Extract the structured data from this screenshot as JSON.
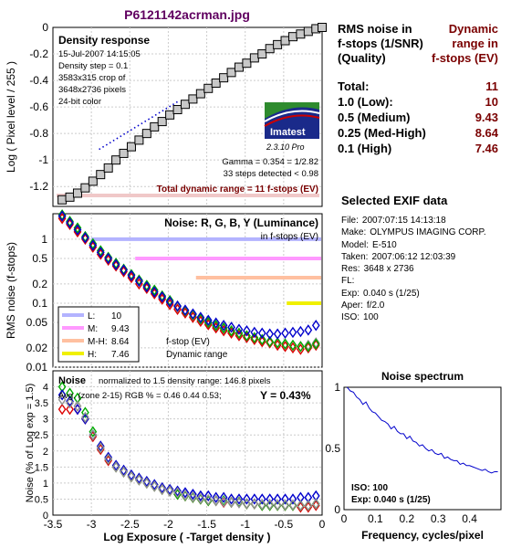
{
  "title": "P6121142acrman.jpg",
  "density_panel": {
    "heading": "Density response",
    "info": [
      "15-Jul-2007 14:15:05",
      "Density step = 0.1",
      "3583x315 crop of",
      "3648x2736 pixels",
      "24-bit color"
    ],
    "logo_text": "Imatest",
    "version_text": "2.3.10  Pro",
    "gamma_text": "Gamma = 0.354 = 1/2.82",
    "steps_text": "33 steps detected < 0.98",
    "total_range_text": "Total dynamic range = 11 f-stops (EV)",
    "ylabel": "Log ( Pixel level / 255 )"
  },
  "noise_fstop_panel": {
    "heading": "Noise: R, G, B, Y (Luminance)",
    "subheading": "in f-stops (EV)",
    "ylabel": "RMS noise (f-stops)",
    "legend": [
      {
        "key": "L:",
        "value": "10",
        "color": "#b3b3ff"
      },
      {
        "key": "M:",
        "value": "9.43",
        "color": "#ff99ff"
      },
      {
        "key": "M-H:",
        "value": "8.64",
        "color": "#ffc0a0"
      },
      {
        "key": "H:",
        "value": "7.46",
        "color": "#f0f000"
      }
    ],
    "annot1": "f-stop (EV)",
    "annot2": "Dynamic range"
  },
  "noise_pct_panel": {
    "heading": "Noise",
    "norm_text": "normalized to 1.5 density range: 146.8 pixels",
    "avg_text": "Avg. (zone 2-15) RGB % = 0.46  0.44  0.53;",
    "y_text": "Y = 0.43%",
    "ylabel": "Noise (% of Log exp = 1.5)",
    "xlabel": "Log Exposure ( -Target density )"
  },
  "rms_table": {
    "head_left": "RMS noise in f-stops (1/SNR) (Quality)",
    "head_left_lines": [
      "RMS noise in",
      "f-stops (1/SNR)",
      "(Quality)"
    ],
    "head_right_lines": [
      "Dynamic",
      "range in",
      "f-stops (EV)"
    ],
    "rows": [
      {
        "label": "Total:",
        "value": "11"
      },
      {
        "label": "1.0   (Low):",
        "value": "10"
      },
      {
        "label": "0.5   (Medium)",
        "value": "9.43"
      },
      {
        "label": "0.25 (Med-High)",
        "value": "8.64"
      },
      {
        "label": "0.1   (High)",
        "value": "7.46"
      }
    ]
  },
  "exif": {
    "heading": "Selected EXIF data",
    "fields": [
      {
        "k": "File:",
        "v": "2007:07:15 14:13:18"
      },
      {
        "k": "Make:",
        "v": "OLYMPUS IMAGING CORP."
      },
      {
        "k": "Model:",
        "v": "E-510"
      },
      {
        "k": "Taken:",
        "v": "2007:06:12 12:03:39"
      },
      {
        "k": "Res:",
        "v": "3648 x 2736"
      },
      {
        "k": "FL:",
        "v": ""
      },
      {
        "k": "Exp:",
        "v": "0.040 s  (1/25)"
      },
      {
        "k": "Aper:",
        "v": "f/2.0"
      },
      {
        "k": "ISO:",
        "v": "100"
      }
    ]
  },
  "spectrum_panel": {
    "title": "Noise spectrum",
    "xlabel": "Frequency, cycles/pixel",
    "iso_text": "ISO:   100",
    "exp_text": "Exp:  0.040 s  (1/25)"
  },
  "colors": {
    "title": "#600060",
    "accent_red": "#7a0000",
    "blue": "#0000cc",
    "green": "#00aa00",
    "red": "#dd0000",
    "gray": "#909090"
  },
  "chart_data": [
    {
      "type": "line",
      "title": "Density response",
      "ylabel": "Log ( Pixel level / 255 )",
      "xlim": [
        -3.5,
        0
      ],
      "ylim": [
        -1.35,
        0
      ],
      "yticks": [
        0,
        -0.2,
        -0.4,
        -0.6,
        -0.8,
        -1,
        -1.2
      ],
      "grid": true,
      "series": [
        {
          "name": "",
          "x": [
            -3.38,
            -3.28,
            -3.18,
            -3.08,
            -2.98,
            -2.88,
            -2.78,
            -2.68,
            -2.58,
            -2.48,
            -2.38,
            -2.28,
            -2.18,
            -2.08,
            -1.98,
            -1.88,
            -1.78,
            -1.68,
            -1.58,
            -1.48,
            -1.38,
            -1.28,
            -1.18,
            -1.08,
            -0.98,
            -0.88,
            -0.78,
            -0.68,
            -0.58,
            -0.48,
            -0.38,
            -0.28,
            -0.18,
            -0.08,
            0.0
          ],
          "y": [
            -1.3,
            -1.28,
            -1.25,
            -1.21,
            -1.16,
            -1.11,
            -1.06,
            -1.0,
            -0.95,
            -0.9,
            -0.85,
            -0.8,
            -0.75,
            -0.71,
            -0.66,
            -0.62,
            -0.58,
            -0.54,
            -0.5,
            -0.46,
            -0.42,
            -0.38,
            -0.34,
            -0.3,
            -0.27,
            -0.23,
            -0.2,
            -0.16,
            -0.13,
            -0.1,
            -0.07,
            -0.05,
            -0.03,
            -0.01,
            0.0
          ]
        }
      ],
      "fit_line": {
        "x": [
          -2.9,
          -1.85
        ],
        "y": [
          -0.92,
          -0.55
        ]
      }
    },
    {
      "type": "scatter",
      "title": "Noise: R, G, B, Y (Luminance)",
      "ylabel": "RMS noise (f-stops)",
      "yscale": "log",
      "ylim": [
        0.01,
        2.5
      ],
      "yticks": [
        1,
        0.5,
        0.2,
        0.1,
        0.05,
        0.02,
        0.01
      ],
      "xlim": [
        -3.5,
        0
      ],
      "quality_lines": [
        {
          "y": 1.0,
          "xstart": -3.0
        },
        {
          "y": 0.5,
          "xstart": -2.43
        },
        {
          "y": 0.25,
          "xstart": -1.64
        },
        {
          "y": 0.1,
          "xstart": -0.46
        }
      ],
      "series": [
        {
          "name": "Y",
          "x": [
            -3.38,
            -3.28,
            -3.18,
            -3.08,
            -2.98,
            -2.88,
            -2.78,
            -2.68,
            -2.58,
            -2.48,
            -2.38,
            -2.28,
            -2.18,
            -2.08,
            -1.98,
            -1.88,
            -1.78,
            -1.68,
            -1.58,
            -1.48,
            -1.38,
            -1.28,
            -1.18,
            -1.08,
            -0.98,
            -0.88,
            -0.78,
            -0.68,
            -0.58,
            -0.48,
            -0.38,
            -0.28,
            -0.18,
            -0.08
          ],
          "y": [
            2.2,
            1.8,
            1.4,
            1.05,
            0.8,
            0.62,
            0.5,
            0.4,
            0.33,
            0.27,
            0.22,
            0.18,
            0.15,
            0.12,
            0.1,
            0.085,
            0.072,
            0.062,
            0.054,
            0.048,
            0.043,
            0.039,
            0.035,
            0.032,
            0.03,
            0.028,
            0.026,
            0.025,
            0.024,
            0.023,
            0.022,
            0.021,
            0.022,
            0.024
          ]
        },
        {
          "name": "R",
          "x": [
            -3.38,
            -3.28,
            -3.18,
            -3.08,
            -2.98,
            -2.88,
            -2.78,
            -2.68,
            -2.58,
            -2.48,
            -2.38,
            -2.28,
            -2.18,
            -2.08,
            -1.98,
            -1.88,
            -1.78,
            -1.68,
            -1.58,
            -1.48,
            -1.38,
            -1.28,
            -1.18,
            -1.08,
            -0.98,
            -0.88,
            -0.78,
            -0.68,
            -0.58,
            -0.48,
            -0.38,
            -0.28,
            -0.18,
            -0.08
          ],
          "y": [
            2.1,
            1.7,
            1.3,
            1.0,
            0.75,
            0.58,
            0.47,
            0.38,
            0.31,
            0.25,
            0.2,
            0.17,
            0.14,
            0.115,
            0.095,
            0.08,
            0.07,
            0.06,
            0.052,
            0.046,
            0.041,
            0.037,
            0.034,
            0.031,
            0.029,
            0.027,
            0.025,
            0.024,
            0.022,
            0.021,
            0.02,
            0.019,
            0.02,
            0.022
          ]
        },
        {
          "name": "G",
          "x": [
            -3.38,
            -3.28,
            -3.18,
            -3.08,
            -2.98,
            -2.88,
            -2.78,
            -2.68,
            -2.58,
            -2.48,
            -2.38,
            -2.28,
            -2.18,
            -2.08,
            -1.98,
            -1.88,
            -1.78,
            -1.68,
            -1.58,
            -1.48,
            -1.38,
            -1.28,
            -1.18,
            -1.08,
            -0.98,
            -0.88,
            -0.78,
            -0.68,
            -0.58,
            -0.48,
            -0.38,
            -0.28,
            -0.18,
            -0.08
          ],
          "y": [
            2.4,
            1.9,
            1.5,
            1.1,
            0.85,
            0.66,
            0.52,
            0.42,
            0.34,
            0.28,
            0.23,
            0.19,
            0.16,
            0.13,
            0.11,
            0.09,
            0.076,
            0.066,
            0.057,
            0.05,
            0.045,
            0.041,
            0.037,
            0.034,
            0.031,
            0.029,
            0.027,
            0.025,
            0.024,
            0.023,
            0.022,
            0.021,
            0.021,
            0.023
          ]
        },
        {
          "name": "B",
          "x": [
            -3.38,
            -3.28,
            -3.18,
            -3.08,
            -2.98,
            -2.88,
            -2.78,
            -2.68,
            -2.58,
            -2.48,
            -2.38,
            -2.28,
            -2.18,
            -2.08,
            -1.98,
            -1.88,
            -1.78,
            -1.68,
            -1.58,
            -1.48,
            -1.38,
            -1.28,
            -1.18,
            -1.08,
            -0.98,
            -0.88,
            -0.78,
            -0.68,
            -0.58,
            -0.48,
            -0.38,
            -0.28,
            -0.18,
            -0.08
          ],
          "y": [
            2.3,
            1.8,
            1.4,
            1.05,
            0.8,
            0.62,
            0.5,
            0.4,
            0.33,
            0.27,
            0.22,
            0.18,
            0.15,
            0.125,
            0.105,
            0.09,
            0.078,
            0.068,
            0.06,
            0.054,
            0.049,
            0.045,
            0.042,
            0.039,
            0.037,
            0.035,
            0.034,
            0.033,
            0.033,
            0.034,
            0.035,
            0.036,
            0.038,
            0.045
          ]
        }
      ]
    },
    {
      "type": "scatter",
      "title": "Noise",
      "xlabel": "Log Exposure ( -Target density )",
      "ylabel": "Noise (% of Log exp = 1.5)",
      "xlim": [
        -3.5,
        0
      ],
      "ylim": [
        0,
        4.5
      ],
      "xticks": [
        -3.5,
        -3,
        -2.5,
        -2,
        -1.5,
        -1,
        -0.5,
        0
      ],
      "yticks": [
        0,
        0.5,
        1,
        1.5,
        2,
        2.5,
        3,
        3.5,
        4
      ],
      "series": [
        {
          "name": "R",
          "x": [
            -3.38,
            -3.28,
            -3.18,
            -3.08,
            -2.98,
            -2.88,
            -2.78,
            -2.68,
            -2.58,
            -2.48,
            -2.38,
            -2.28,
            -2.18,
            -2.08,
            -1.98,
            -1.88,
            -1.78,
            -1.68,
            -1.58,
            -1.48,
            -1.38,
            -1.28,
            -1.18,
            -1.08,
            -0.98,
            -0.88,
            -0.78,
            -0.68,
            -0.58,
            -0.48,
            -0.38,
            -0.28,
            -0.18,
            -0.08
          ],
          "y": [
            3.3,
            3.3,
            3.3,
            3.0,
            2.45,
            2.05,
            1.7,
            1.5,
            1.35,
            1.2,
            1.1,
            1.0,
            0.9,
            0.8,
            0.75,
            0.65,
            0.6,
            0.55,
            0.5,
            0.45,
            0.45,
            0.4,
            0.4,
            0.4,
            0.35,
            0.35,
            0.3,
            0.3,
            0.3,
            0.3,
            0.3,
            0.25,
            0.25,
            0.3
          ]
        },
        {
          "name": "G",
          "x": [
            -3.38,
            -3.28,
            -3.18,
            -3.08,
            -2.98,
            -2.88,
            -2.78,
            -2.68,
            -2.58,
            -2.48,
            -2.38,
            -2.28,
            -2.18,
            -2.08,
            -1.98,
            -1.88,
            -1.78,
            -1.68,
            -1.58,
            -1.48,
            -1.38,
            -1.28,
            -1.18,
            -1.08,
            -0.98,
            -0.88,
            -0.78,
            -0.68,
            -0.58,
            -0.48,
            -0.38,
            -0.28,
            -0.18,
            -0.08
          ],
          "y": [
            4.0,
            3.8,
            3.65,
            3.2,
            2.6,
            2.1,
            1.75,
            1.5,
            1.35,
            1.2,
            1.1,
            1.0,
            0.9,
            0.8,
            0.75,
            0.65,
            0.6,
            0.55,
            0.5,
            0.45,
            0.45,
            0.45,
            0.4,
            0.4,
            0.35,
            0.35,
            0.3,
            0.3,
            0.3,
            0.3,
            0.3,
            0.3,
            0.3,
            0.35
          ]
        },
        {
          "name": "B",
          "x": [
            -3.38,
            -3.28,
            -3.18,
            -3.08,
            -2.98,
            -2.88,
            -2.78,
            -2.68,
            -2.58,
            -2.48,
            -2.38,
            -2.28,
            -2.18,
            -2.08,
            -1.98,
            -1.88,
            -1.78,
            -1.68,
            -1.58,
            -1.48,
            -1.38,
            -1.28,
            -1.18,
            -1.08,
            -0.98,
            -0.88,
            -0.78,
            -0.68,
            -0.58,
            -0.48,
            -0.38,
            -0.28,
            -0.18,
            -0.08
          ],
          "y": [
            3.75,
            3.55,
            3.3,
            3.0,
            2.5,
            2.15,
            1.8,
            1.55,
            1.4,
            1.25,
            1.15,
            1.05,
            0.95,
            0.85,
            0.8,
            0.75,
            0.7,
            0.65,
            0.6,
            0.6,
            0.55,
            0.55,
            0.5,
            0.5,
            0.5,
            0.5,
            0.5,
            0.5,
            0.5,
            0.5,
            0.5,
            0.55,
            0.55,
            0.6
          ]
        },
        {
          "name": "Y",
          "x": [
            -3.38,
            -3.28,
            -3.18,
            -3.08,
            -2.98,
            -2.88,
            -2.78,
            -2.68,
            -2.58,
            -2.48,
            -2.38,
            -2.28,
            -2.18,
            -2.08,
            -1.98,
            -1.88,
            -1.78,
            -1.68,
            -1.58,
            -1.48,
            -1.38,
            -1.28,
            -1.18,
            -1.08,
            -0.98,
            -0.88,
            -0.78,
            -0.68,
            -0.58,
            -0.48,
            -0.38,
            -0.28,
            -0.18,
            -0.08
          ],
          "y": [
            3.6,
            3.5,
            3.4,
            3.05,
            2.5,
            2.1,
            1.75,
            1.5,
            1.35,
            1.2,
            1.1,
            1.0,
            0.9,
            0.8,
            0.75,
            0.7,
            0.62,
            0.57,
            0.52,
            0.48,
            0.45,
            0.42,
            0.4,
            0.38,
            0.36,
            0.35,
            0.33,
            0.33,
            0.32,
            0.32,
            0.32,
            0.3,
            0.3,
            0.35
          ]
        }
      ]
    },
    {
      "type": "line",
      "title": "Noise spectrum",
      "xlabel": "Frequency, cycles/pixel",
      "xlim": [
        0,
        0.5
      ],
      "ylim": [
        0,
        1
      ],
      "xticks": [
        0,
        0.1,
        0.2,
        0.3,
        0.4
      ],
      "yticks": [
        0,
        0.5,
        1
      ],
      "series": [
        {
          "name": "",
          "x": [
            0.01,
            0.02,
            0.03,
            0.04,
            0.05,
            0.06,
            0.07,
            0.08,
            0.09,
            0.1,
            0.11,
            0.12,
            0.13,
            0.14,
            0.15,
            0.16,
            0.17,
            0.18,
            0.19,
            0.2,
            0.21,
            0.22,
            0.23,
            0.24,
            0.25,
            0.26,
            0.27,
            0.28,
            0.29,
            0.3,
            0.31,
            0.32,
            0.33,
            0.34,
            0.35,
            0.36,
            0.37,
            0.38,
            0.39,
            0.4,
            0.41,
            0.42,
            0.43,
            0.44,
            0.45,
            0.46,
            0.47,
            0.48,
            0.49
          ],
          "y": [
            1.0,
            0.97,
            0.96,
            0.92,
            0.9,
            0.86,
            0.88,
            0.83,
            0.8,
            0.79,
            0.76,
            0.73,
            0.72,
            0.7,
            0.66,
            0.68,
            0.64,
            0.62,
            0.62,
            0.58,
            0.6,
            0.56,
            0.55,
            0.52,
            0.53,
            0.5,
            0.48,
            0.49,
            0.46,
            0.45,
            0.46,
            0.42,
            0.43,
            0.41,
            0.4,
            0.4,
            0.37,
            0.38,
            0.36,
            0.36,
            0.35,
            0.34,
            0.33,
            0.32,
            0.33,
            0.31,
            0.3,
            0.31,
            0.31
          ]
        }
      ]
    }
  ]
}
